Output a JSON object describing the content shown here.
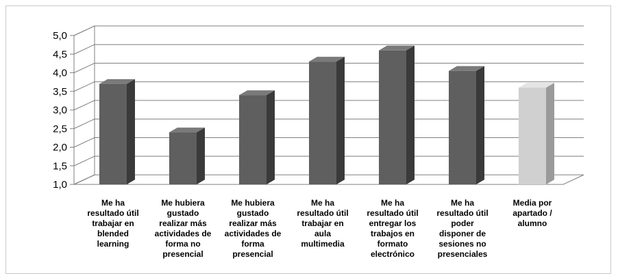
{
  "chart_data": {
    "type": "bar",
    "categories": [
      "Me ha\nresultado útil\ntrabajar en\nblended\nlearning",
      "Me hubiera\ngustado\nrealizar más\nactividades de\nforma no\npresencial",
      "Me hubiera\ngustado\nrealizar más\nactividades de\nforma\npresencial",
      "Me ha\nresultado útil\ntrabajar en\naula\nmultimedia",
      "Me ha\nresultado útil\nentregar los\ntrabajos en\nformato\nelectrónico",
      "Me ha\nresultado útil\npoder\ndisponer de\nsesiones no\npresenciales",
      "Media por\napartado /\nalumno"
    ],
    "values": [
      3.7,
      2.4,
      3.4,
      4.3,
      4.6,
      4.05,
      3.6
    ],
    "ylim": [
      1.0,
      5.0
    ],
    "yticks": [
      "1,0",
      "1,5",
      "2,0",
      "2,5",
      "3,0",
      "3,5",
      "4,0",
      "4,5",
      "5,0"
    ],
    "grid": true,
    "legend": "none",
    "colors": {
      "bar_front": "#5f5f5f",
      "bar_side": "#3a3a3a",
      "bar_top": "#7a7a7a",
      "highlight_front": "#d0d0d0",
      "highlight_side": "#9a9a9a",
      "highlight_top": "#e4e4e4",
      "grid": "#7f7f7f"
    }
  }
}
